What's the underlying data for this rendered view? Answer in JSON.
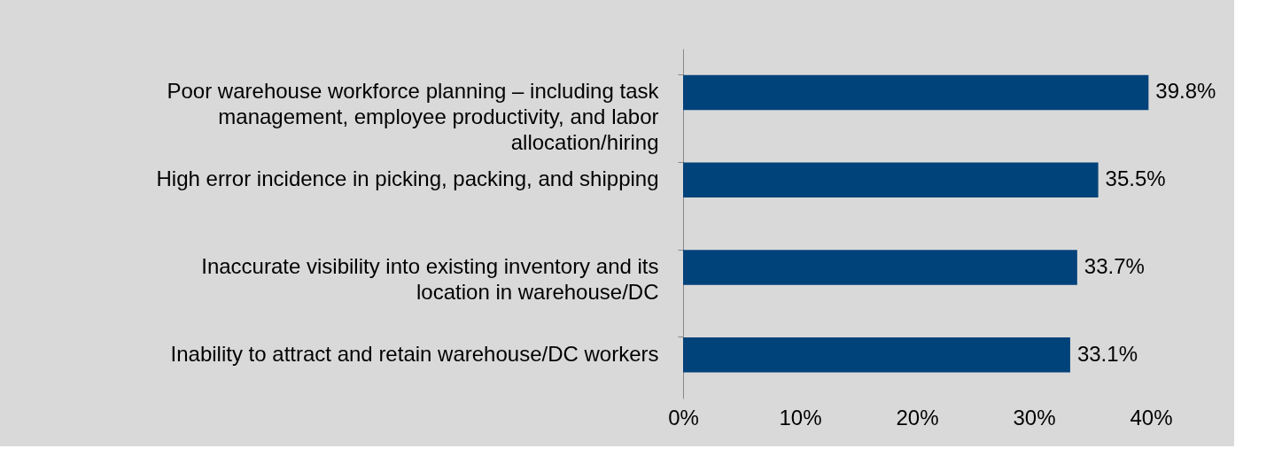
{
  "chart_data": {
    "type": "bar",
    "orientation": "horizontal",
    "categories": [
      "Poor warehouse workforce planning – including task management, employee productivity, and labor allocation/hiring",
      "High error incidence in picking, packing, and shipping",
      "Inaccurate visibility into existing inventory and its location in warehouse/DC",
      "Inability to attract and retain warehouse/DC workers"
    ],
    "values": [
      39.8,
      35.5,
      33.7,
      33.1
    ],
    "color": "#00427a",
    "value_labels": [
      "39.8%",
      "35.5%",
      "33.7%",
      "33.1%"
    ],
    "xlim": [
      0,
      40
    ],
    "xticks": [
      {
        "value": 0,
        "label": "0%"
      },
      {
        "value": 10,
        "label": "10%"
      },
      {
        "value": 20,
        "label": "20%"
      },
      {
        "value": 30,
        "label": "30%"
      },
      {
        "value": 40,
        "label": "40%"
      }
    ]
  }
}
